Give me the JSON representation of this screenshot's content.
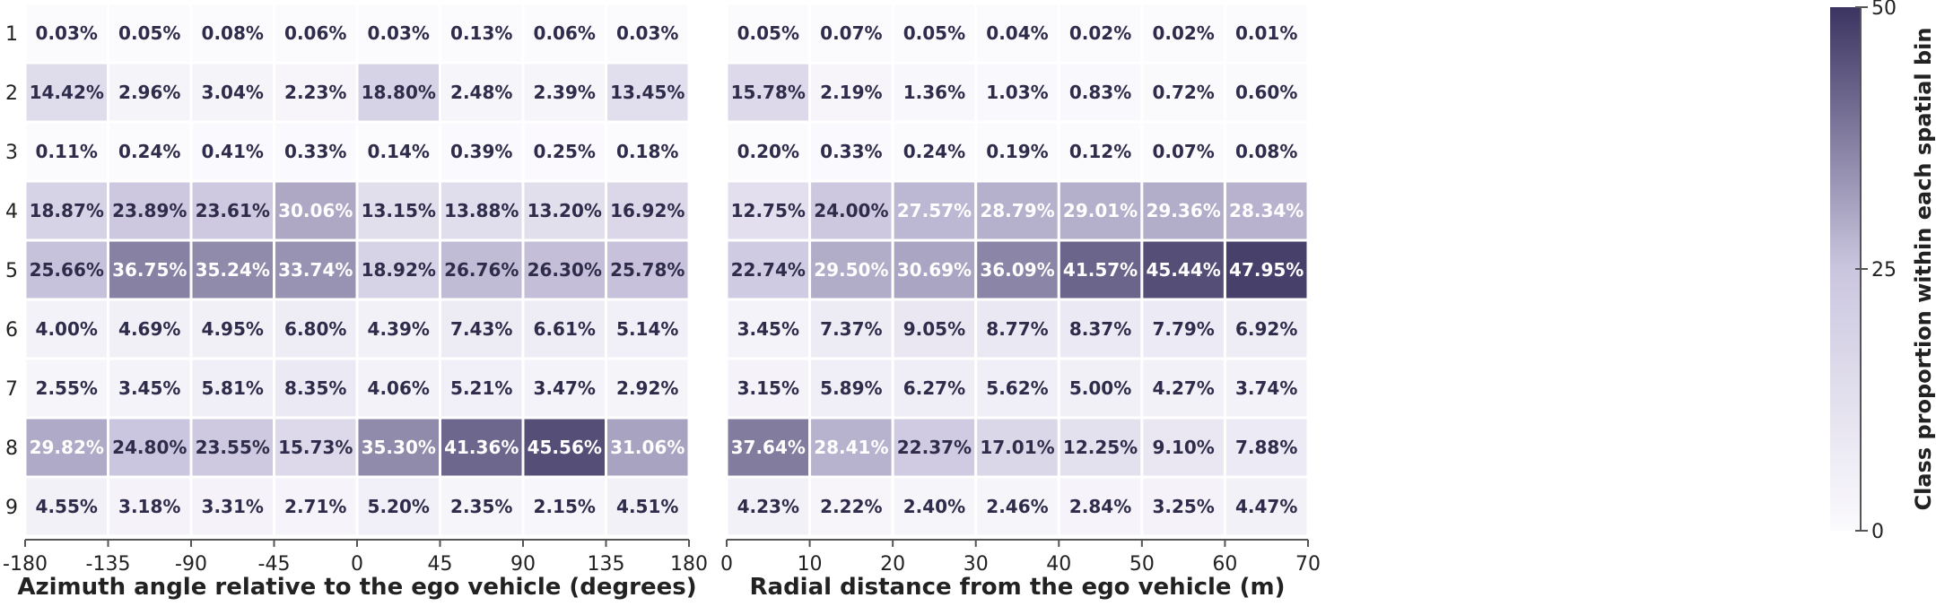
{
  "chart_data": [
    {
      "type": "heatmap",
      "xlabel": "Azimuth angle relative to the ego vehicle (degrees)",
      "x_ticks": [
        "-180",
        "-135",
        "-90",
        "-45",
        "0",
        "45",
        "90",
        "135",
        "180"
      ],
      "rows": [
        "1",
        "2",
        "3",
        "4",
        "5",
        "6",
        "7",
        "8",
        "9"
      ],
      "values": [
        [
          0.03,
          0.05,
          0.08,
          0.06,
          0.03,
          0.13,
          0.06,
          0.03
        ],
        [
          14.42,
          2.96,
          3.04,
          2.23,
          18.8,
          2.48,
          2.39,
          13.45
        ],
        [
          0.11,
          0.24,
          0.41,
          0.33,
          0.14,
          0.39,
          0.25,
          0.18
        ],
        [
          18.87,
          23.89,
          23.61,
          30.06,
          13.15,
          13.88,
          13.2,
          16.92
        ],
        [
          25.66,
          36.75,
          35.24,
          33.74,
          18.92,
          26.76,
          26.3,
          25.78
        ],
        [
          4.0,
          4.69,
          4.95,
          6.8,
          4.39,
          7.43,
          6.61,
          5.14
        ],
        [
          2.55,
          3.45,
          5.81,
          8.35,
          4.06,
          5.21,
          3.47,
          2.92
        ],
        [
          29.82,
          24.8,
          23.55,
          15.73,
          35.3,
          41.36,
          45.56,
          31.06
        ],
        [
          4.55,
          3.18,
          3.31,
          2.71,
          5.2,
          2.35,
          2.15,
          4.51
        ]
      ],
      "labels": [
        [
          "0.03%",
          "0.05%",
          "0.08%",
          "0.06%",
          "0.03%",
          "0.13%",
          "0.06%",
          "0.03%"
        ],
        [
          "14.42%",
          "2.96%",
          "3.04%",
          "2.23%",
          "18.80%",
          "2.48%",
          "2.39%",
          "13.45%"
        ],
        [
          "0.11%",
          "0.24%",
          "0.41%",
          "0.33%",
          "0.14%",
          "0.39%",
          "0.25%",
          "0.18%"
        ],
        [
          "18.87%",
          "23.89%",
          "23.61%",
          "30.06%",
          "13.15%",
          "13.88%",
          "13.20%",
          "16.92%"
        ],
        [
          "25.66%",
          "36.75%",
          "35.24%",
          "33.74%",
          "18.92%",
          "26.76%",
          "26.30%",
          "25.78%"
        ],
        [
          "4.00%",
          "4.69%",
          "4.95%",
          "6.80%",
          "4.39%",
          "7.43%",
          "6.61%",
          "5.14%"
        ],
        [
          "2.55%",
          "3.45%",
          "5.81%",
          "8.35%",
          "4.06%",
          "5.21%",
          "3.47%",
          "2.92%"
        ],
        [
          "29.82%",
          "24.80%",
          "23.55%",
          "15.73%",
          "35.30%",
          "41.36%",
          "45.56%",
          "31.06%"
        ],
        [
          "4.55%",
          "3.18%",
          "3.31%",
          "2.71%",
          "5.20%",
          "2.35%",
          "2.15%",
          "4.51%"
        ]
      ]
    },
    {
      "type": "heatmap",
      "xlabel": "Radial distance from the ego vehicle (m)",
      "x_ticks": [
        "0",
        "10",
        "20",
        "30",
        "40",
        "50",
        "60",
        "70"
      ],
      "rows": [
        "1",
        "2",
        "3",
        "4",
        "5",
        "6",
        "7",
        "8",
        "9"
      ],
      "values": [
        [
          0.05,
          0.07,
          0.05,
          0.04,
          0.02,
          0.02,
          0.01
        ],
        [
          15.78,
          2.19,
          1.36,
          1.03,
          0.83,
          0.72,
          0.6
        ],
        [
          0.2,
          0.33,
          0.24,
          0.19,
          0.12,
          0.07,
          0.08
        ],
        [
          12.75,
          24.0,
          27.57,
          28.79,
          29.01,
          29.36,
          28.34
        ],
        [
          22.74,
          29.5,
          30.69,
          36.09,
          41.57,
          45.44,
          47.95
        ],
        [
          3.45,
          7.37,
          9.05,
          8.77,
          8.37,
          7.79,
          6.92
        ],
        [
          3.15,
          5.89,
          6.27,
          5.62,
          5.0,
          4.27,
          3.74
        ],
        [
          37.64,
          28.41,
          22.37,
          17.01,
          12.25,
          9.1,
          7.88
        ],
        [
          4.23,
          2.22,
          2.4,
          2.46,
          2.84,
          3.25,
          4.47
        ]
      ],
      "labels": [
        [
          "0.05%",
          "0.07%",
          "0.05%",
          "0.04%",
          "0.02%",
          "0.02%",
          "0.01%"
        ],
        [
          "15.78%",
          "2.19%",
          "1.36%",
          "1.03%",
          "0.83%",
          "0.72%",
          "0.60%"
        ],
        [
          "0.20%",
          "0.33%",
          "0.24%",
          "0.19%",
          "0.12%",
          "0.07%",
          "0.08%"
        ],
        [
          "12.75%",
          "24.00%",
          "27.57%",
          "28.79%",
          "29.01%",
          "29.36%",
          "28.34%"
        ],
        [
          "22.74%",
          "29.50%",
          "30.69%",
          "36.09%",
          "41.57%",
          "45.44%",
          "47.95%"
        ],
        [
          "3.45%",
          "7.37%",
          "9.05%",
          "8.77%",
          "8.37%",
          "7.79%",
          "6.92%"
        ],
        [
          "3.15%",
          "5.89%",
          "6.27%",
          "5.62%",
          "5.00%",
          "4.27%",
          "3.74%"
        ],
        [
          "37.64%",
          "28.41%",
          "22.37%",
          "17.01%",
          "12.25%",
          "9.10%",
          "7.88%"
        ],
        [
          "4.23%",
          "2.22%",
          "2.40%",
          "2.46%",
          "2.84%",
          "3.25%",
          "4.47%"
        ]
      ]
    }
  ],
  "colorbar": {
    "title": "Class proportion within each spatial bin",
    "range": [
      0,
      50
    ],
    "ticks": [
      "0",
      "25",
      "50"
    ],
    "color_low": "#fbfafd",
    "color_high": "#3b3461"
  }
}
